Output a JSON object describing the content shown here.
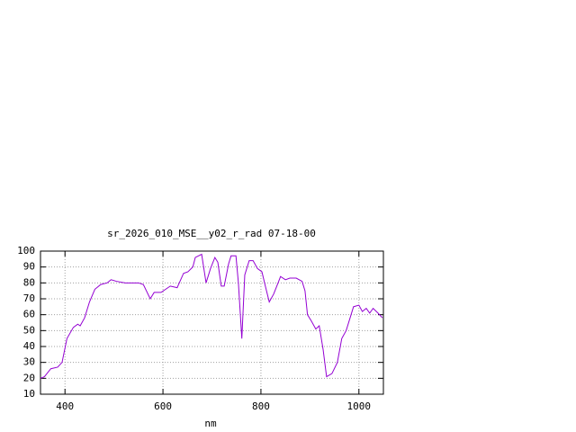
{
  "chart_data": {
    "type": "line",
    "title": "sr_2026_010_MSE__y02_r_rad 07-18-00",
    "x_label": "nm",
    "xlim": [
      350,
      1050
    ],
    "xticks": [
      400,
      600,
      800,
      1000
    ],
    "ylim": [
      10,
      100
    ],
    "yticks": [
      10,
      20,
      30,
      40,
      50,
      60,
      70,
      80,
      90,
      100
    ],
    "grid": true,
    "series": [
      {
        "color": "#9400d3",
        "x": [
          350,
          358,
          371,
          385,
          394,
          404,
          417,
          426,
          431,
          440,
          450,
          461,
          473,
          486,
          494,
          505,
          523,
          550,
          560,
          574,
          582,
          596,
          615,
          629,
          642,
          651,
          661,
          666,
          679,
          688,
          697,
          706,
          712,
          719,
          725,
          734,
          739,
          749,
          754,
          761,
          767,
          776,
          784,
          793,
          802,
          809,
          817,
          826,
          835,
          840,
          850,
          859,
          872,
          884,
          890,
          895,
          903,
          912,
          919,
          927,
          934,
          945,
          956,
          965,
          974,
          982,
          989,
          1000,
          1007,
          1015,
          1022,
          1029,
          1039,
          1048
        ],
        "values": [
          20,
          21,
          26,
          27,
          30,
          45,
          52,
          54,
          53,
          58,
          68,
          76,
          79,
          80,
          82,
          81,
          80,
          80,
          79,
          70,
          74,
          74,
          78,
          77,
          86,
          87,
          90,
          96,
          98,
          80,
          89,
          96,
          93,
          78,
          78,
          92,
          97,
          97,
          80,
          45,
          85,
          94,
          94,
          89,
          87,
          78,
          68,
          73,
          80,
          84,
          82,
          83,
          83,
          81,
          75,
          60,
          56,
          51,
          53,
          38,
          21,
          23,
          30,
          45,
          50,
          58,
          65,
          66,
          62,
          64,
          61,
          64,
          61,
          58
        ]
      }
    ]
  }
}
